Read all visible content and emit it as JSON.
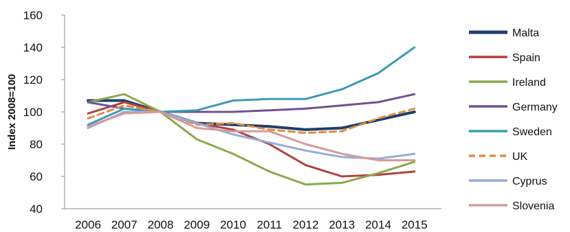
{
  "chart_data": {
    "type": "line",
    "title": "",
    "xlabel": "",
    "ylabel": "Index 2008=100",
    "x": [
      "2006",
      "2007",
      "2008",
      "2009",
      "2010",
      "2011",
      "2012",
      "2013",
      "2014",
      "2015"
    ],
    "ylim": [
      40,
      160
    ],
    "yticks": [
      40,
      60,
      80,
      100,
      120,
      140,
      160
    ],
    "grid": false,
    "legend_position": "right",
    "series": [
      {
        "name": "Malta",
        "color": "#1f3f6e",
        "style": "solid",
        "values": [
          107,
          107,
          100,
          93,
          92,
          91,
          89,
          90,
          95,
          100
        ]
      },
      {
        "name": "Spain",
        "color": "#b0413e",
        "style": "solid",
        "values": [
          99,
          106,
          100,
          93,
          89,
          80,
          67,
          60,
          61,
          63
        ]
      },
      {
        "name": "Ireland",
        "color": "#8aa84b",
        "style": "solid",
        "values": [
          106,
          111,
          100,
          83,
          74,
          63,
          55,
          56,
          62,
          69
        ]
      },
      {
        "name": "Germany",
        "color": "#70508f",
        "style": "solid",
        "values": [
          106,
          102,
          100,
          100,
          100,
          101,
          102,
          104,
          106,
          111
        ]
      },
      {
        "name": "Sweden",
        "color": "#3b9bb3",
        "style": "solid",
        "values": [
          92,
          102,
          100,
          101,
          107,
          108,
          108,
          114,
          124,
          140
        ]
      },
      {
        "name": "UK",
        "color": "#e08c3e",
        "style": "dashed",
        "values": [
          96,
          104,
          100,
          92,
          93,
          89,
          87,
          88,
          96,
          102
        ]
      },
      {
        "name": "Cyprus",
        "color": "#94aedb",
        "style": "solid",
        "values": [
          90,
          100,
          100,
          93,
          86,
          81,
          76,
          72,
          71,
          74
        ]
      },
      {
        "name": "Slovenia",
        "color": "#d69a9a",
        "style": "solid",
        "values": [
          91,
          99,
          100,
          90,
          88,
          88,
          80,
          74,
          70,
          70
        ]
      }
    ]
  }
}
